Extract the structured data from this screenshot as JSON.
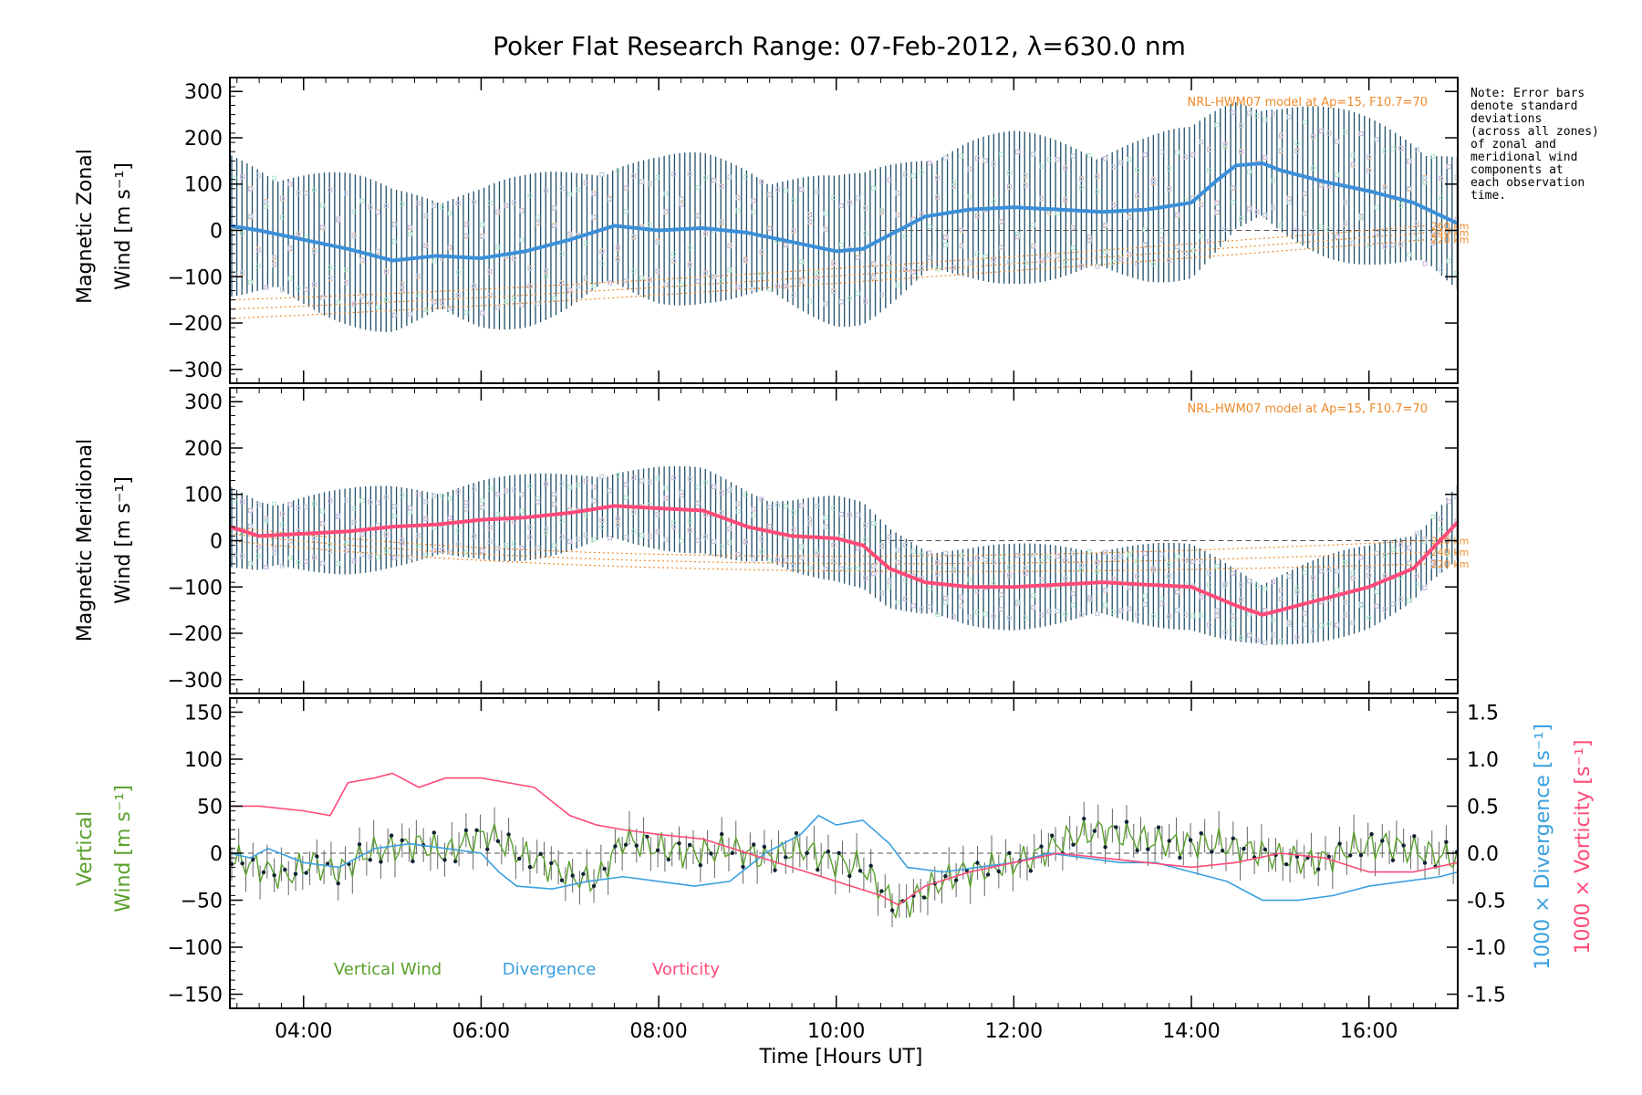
{
  "chart_data": [
    {
      "type": "line",
      "title": "Poker Flat Research Range: 07-Feb-2012, λ=630.0 nm",
      "ylabel_lines": [
        "Magnetic Zonal",
        "Wind [m s⁻¹]"
      ],
      "xlim": [
        3.17,
        17.0
      ],
      "ylim": [
        -330,
        330
      ],
      "yticks": [
        -300,
        -200,
        -100,
        0,
        100,
        200,
        300
      ],
      "xticks": [
        4,
        6,
        8,
        10,
        12,
        14,
        16
      ],
      "model_label": "NRL-HWM07 model at Ap=15, F10.7=70",
      "model_curve_labels": [
        "260 km",
        "240 km",
        "220 km"
      ],
      "error_bar_halfwidth": 150,
      "series": [
        {
          "name": "Mean magnetic zonal wind",
          "color": "#3a8fd8",
          "x": [
            3.17,
            3.5,
            4.0,
            4.5,
            5.0,
            5.5,
            6.0,
            6.5,
            7.0,
            7.5,
            8.0,
            8.5,
            9.0,
            9.5,
            10.0,
            10.3,
            10.6,
            11.0,
            11.5,
            12.0,
            12.5,
            13.0,
            13.5,
            14.0,
            14.3,
            14.5,
            14.8,
            15.0,
            15.5,
            16.0,
            16.5,
            17.0
          ],
          "y": [
            10,
            0,
            -20,
            -40,
            -65,
            -55,
            -60,
            -45,
            -20,
            10,
            0,
            5,
            -5,
            -25,
            -45,
            -40,
            -10,
            30,
            45,
            50,
            45,
            40,
            45,
            60,
            110,
            140,
            145,
            130,
            105,
            85,
            60,
            15
          ]
        }
      ]
    },
    {
      "type": "line",
      "ylabel_lines": [
        "Magnetic Meridional",
        "Wind [m s⁻¹]"
      ],
      "xlim": [
        3.17,
        17.0
      ],
      "ylim": [
        -330,
        330
      ],
      "yticks": [
        -300,
        -200,
        -100,
        0,
        100,
        200,
        300
      ],
      "xticks": [
        4,
        6,
        8,
        10,
        12,
        14,
        16
      ],
      "model_label": "NRL-HWM07 model at Ap=15, F10.7=70",
      "model_curve_labels": [
        "260 km",
        "240 km",
        "220 km"
      ],
      "error_bar_halfwidth": 85,
      "series": [
        {
          "name": "Mean magnetic meridional wind",
          "color": "#ff4a78",
          "x": [
            3.17,
            3.5,
            4.0,
            4.5,
            5.0,
            5.5,
            6.0,
            6.5,
            7.0,
            7.5,
            8.0,
            8.5,
            9.0,
            9.5,
            10.0,
            10.3,
            10.6,
            11.0,
            11.5,
            12.0,
            12.5,
            13.0,
            13.5,
            14.0,
            14.5,
            14.8,
            15.0,
            15.5,
            16.0,
            16.5,
            17.0
          ],
          "y": [
            30,
            10,
            15,
            20,
            30,
            35,
            45,
            50,
            60,
            75,
            70,
            65,
            30,
            10,
            5,
            -10,
            -60,
            -90,
            -100,
            -100,
            -95,
            -90,
            -95,
            -100,
            -140,
            -160,
            -150,
            -125,
            -100,
            -60,
            40
          ]
        }
      ]
    },
    {
      "type": "line",
      "ylabel_lines": [
        "Vertical",
        "Wind [m s⁻¹]"
      ],
      "y2label_lines": [
        "1000 × Divergence [s⁻¹]",
        "1000 × Vorticity [s⁻¹]"
      ],
      "xlabel": "Time [Hours UT]",
      "xlim": [
        3.17,
        17.0
      ],
      "ylim": [
        -165,
        165
      ],
      "y2lim": [
        -1.65,
        1.65
      ],
      "yticks": [
        -150,
        -100,
        -50,
        0,
        50,
        100,
        150
      ],
      "y2ticks": [
        -1.5,
        -1.0,
        -0.5,
        0.0,
        0.5,
        1.0,
        1.5
      ],
      "xticks": [
        4,
        6,
        8,
        10,
        12,
        14,
        16
      ],
      "xtick_labels": [
        "04:00",
        "06:00",
        "08:00",
        "10:00",
        "12:00",
        "14:00",
        "16:00"
      ],
      "series": [
        {
          "name": "Vertical Wind",
          "color": "#5aa02c",
          "axis": "left",
          "x": [
            3.17,
            3.5,
            3.8,
            4.1,
            4.4,
            4.7,
            5.0,
            5.3,
            5.6,
            5.9,
            6.1,
            6.4,
            6.7,
            7.0,
            7.3,
            7.6,
            8.0,
            8.4,
            8.8,
            9.2,
            9.6,
            10.0,
            10.3,
            10.7,
            11.0,
            11.4,
            11.8,
            12.2,
            12.6,
            13.0,
            13.4,
            13.8,
            14.2,
            14.6,
            15.0,
            15.4,
            15.8,
            16.2,
            16.6,
            17.0
          ],
          "y": [
            -5,
            -15,
            -25,
            -10,
            -20,
            0,
            5,
            10,
            0,
            15,
            20,
            0,
            -10,
            -25,
            -30,
            15,
            5,
            0,
            5,
            -5,
            5,
            -10,
            -15,
            -60,
            -40,
            -20,
            -15,
            -5,
            15,
            25,
            15,
            10,
            10,
            5,
            -5,
            -10,
            5,
            10,
            0,
            -5
          ]
        },
        {
          "name": "Divergence",
          "color": "#3aa0e0",
          "axis": "right",
          "x": [
            3.17,
            3.4,
            3.6,
            4.0,
            4.4,
            4.8,
            5.2,
            5.6,
            6.0,
            6.2,
            6.4,
            6.8,
            7.2,
            7.6,
            8.0,
            8.4,
            8.8,
            9.2,
            9.6,
            9.8,
            10.0,
            10.3,
            10.6,
            10.8,
            11.2,
            11.6,
            12.0,
            12.4,
            12.8,
            13.2,
            13.6,
            14.0,
            14.4,
            14.8,
            15.2,
            15.6,
            16.0,
            16.4,
            16.8,
            17.0
          ],
          "y": [
            0.0,
            -0.05,
            0.05,
            -0.1,
            -0.15,
            0.05,
            0.1,
            0.05,
            0.0,
            -0.2,
            -0.35,
            -0.38,
            -0.3,
            -0.25,
            -0.3,
            -0.35,
            -0.3,
            0.0,
            0.2,
            0.4,
            0.3,
            0.35,
            0.1,
            -0.15,
            -0.2,
            -0.15,
            -0.1,
            0.0,
            -0.05,
            -0.1,
            -0.1,
            -0.2,
            -0.3,
            -0.5,
            -0.5,
            -0.45,
            -0.35,
            -0.3,
            -0.25,
            -0.2
          ]
        },
        {
          "name": "Vorticity",
          "color": "#ff4a78",
          "axis": "right",
          "x": [
            3.17,
            3.5,
            4.0,
            4.3,
            4.5,
            4.8,
            5.0,
            5.3,
            5.6,
            6.0,
            6.3,
            6.6,
            6.8,
            7.0,
            7.3,
            7.6,
            8.0,
            8.5,
            9.0,
            9.5,
            10.0,
            10.5,
            10.7,
            11.0,
            11.5,
            12.0,
            12.5,
            13.0,
            13.5,
            14.0,
            14.5,
            15.0,
            15.5,
            16.0,
            16.5,
            17.0
          ],
          "y": [
            0.5,
            0.5,
            0.45,
            0.4,
            0.75,
            0.8,
            0.85,
            0.7,
            0.8,
            0.8,
            0.75,
            0.7,
            0.55,
            0.4,
            0.3,
            0.25,
            0.2,
            0.15,
            0.0,
            -0.15,
            -0.3,
            -0.45,
            -0.55,
            -0.35,
            -0.2,
            -0.1,
            0.0,
            -0.05,
            -0.1,
            -0.15,
            -0.1,
            0.0,
            -0.05,
            -0.2,
            -0.2,
            -0.1
          ]
        }
      ],
      "legend": [
        "Vertical Wind",
        "Divergence",
        "Vorticity"
      ]
    }
  ],
  "note": [
    "Note: Error bars",
    "denote standard",
    "deviations",
    "(across all zones)",
    "of zonal and",
    "meridional wind",
    "components at",
    "each observation",
    "time."
  ]
}
